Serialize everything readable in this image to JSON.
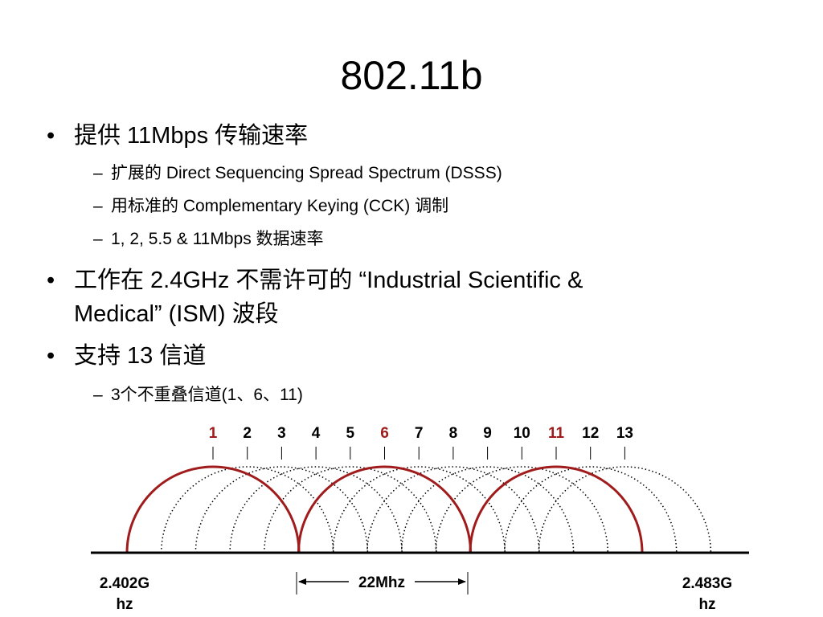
{
  "title": "802.11b",
  "bullets": {
    "b1": "提供 11Mbps 传输速率",
    "b1_sub1": "扩展的 Direct Sequencing Spread Spectrum (DSSS)",
    "b1_sub2": "用标准的 Complementary Keying (CCK) 调制",
    "b1_sub3": "1, 2, 5.5 & 11Mbps 数据速率",
    "b2_line1": "工作在 2.4GHz 不需许可的 “Industrial Scientific &",
    "b2_line2": "Medical” (ISM) 波段",
    "b3": "支持 13 信道",
    "b3_sub1": "3个不重叠信道(1、6、11)"
  },
  "markers": {
    "bullet": "•",
    "dash": "–"
  },
  "diagram": {
    "channels": [
      "1",
      "2",
      "3",
      "4",
      "5",
      "6",
      "7",
      "8",
      "9",
      "10",
      "11",
      "12",
      "13"
    ],
    "highlighted_channels": [
      "1",
      "6",
      "11"
    ],
    "highlight_color": "#a01c1c",
    "freq_start": "2.402Ghz",
    "freq_end": "2.483Ghz",
    "bandwidth_label": "22Mhz"
  }
}
